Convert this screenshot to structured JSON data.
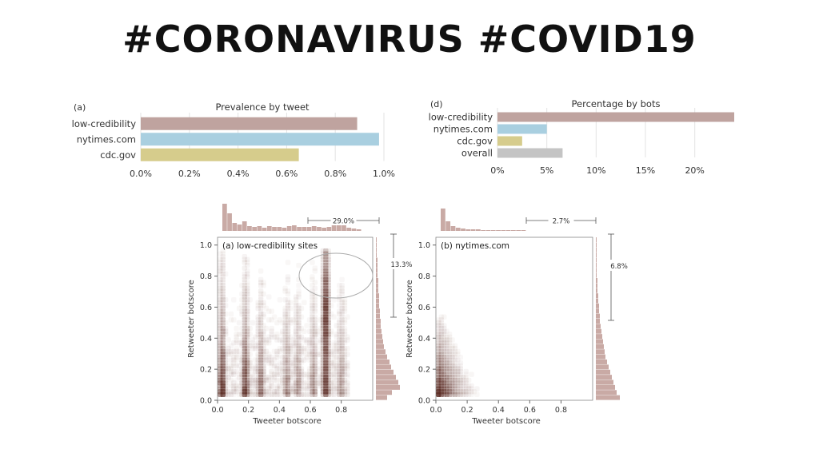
{
  "headline": "#CORONAVIRUS #COVID19",
  "chart_data": [
    {
      "type": "bar",
      "orientation": "horizontal",
      "panel": "(a)",
      "title": "Prevalence by tweet",
      "categories": [
        "low-credibility",
        "nytimes.com",
        "cdc.gov"
      ],
      "values": [
        0.89,
        0.98,
        0.65
      ],
      "unit": "%",
      "xlim": [
        0,
        1.0
      ],
      "xticks": [
        "0.0%",
        "0.2%",
        "0.4%",
        "0.6%",
        "0.8%",
        "1.0%"
      ],
      "colors": [
        "#bfa39f",
        "#a9cfe0",
        "#d6cc8c"
      ],
      "grid": true
    },
    {
      "type": "bar",
      "orientation": "horizontal",
      "panel": "(d)",
      "title": "Percentage by bots",
      "categories": [
        "low-credibility",
        "nytimes.com",
        "cdc.gov",
        "overall"
      ],
      "values": [
        24,
        5,
        2.5,
        6.6
      ],
      "unit": "%",
      "xlim": [
        0,
        24
      ],
      "xticks": [
        "0%",
        "5%",
        "10%",
        "15%",
        "20%"
      ],
      "colors": [
        "#bfa39f",
        "#a9cfe0",
        "#d6cc8c",
        "#c4c4c4"
      ],
      "grid": true
    },
    {
      "type": "heatmap",
      "panel": "(a) low-credibility sites",
      "xlabel": "Tweeter botscore",
      "ylabel": "Retweeter botscore",
      "xticks": [
        "0.0",
        "0.2",
        "0.4",
        "0.6",
        "0.8"
      ],
      "yticks": [
        "0.0",
        "0.2",
        "0.4",
        "0.6",
        "0.8",
        "1.0"
      ],
      "top_annotation": "29.0%",
      "right_annotation": "13.3%",
      "color": "#5a2a22"
    },
    {
      "type": "heatmap",
      "panel": "(b) nytimes.com",
      "xlabel": "Tweeter botscore",
      "ylabel": "Retweeter botscore",
      "xticks": [
        "0.0",
        "0.2",
        "0.4",
        "0.6",
        "0.8"
      ],
      "yticks": [
        "0.0",
        "0.2",
        "0.4",
        "0.6",
        "0.8",
        "1.0"
      ],
      "top_annotation": "2.7%",
      "right_annotation": "6.8%",
      "color": "#5a2a22"
    }
  ]
}
